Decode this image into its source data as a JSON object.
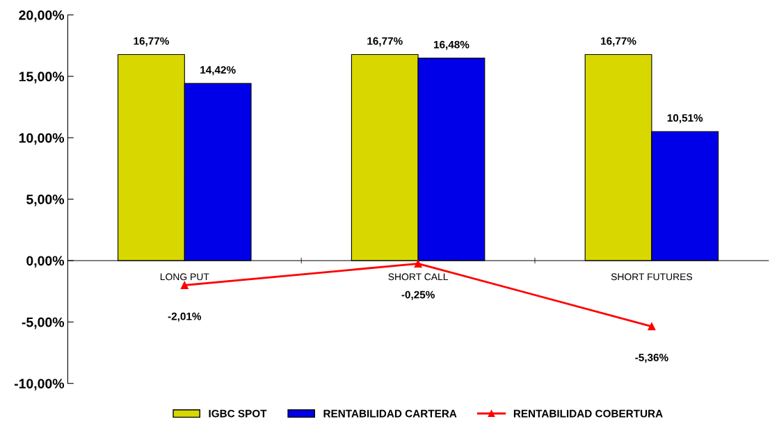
{
  "chart_data": {
    "type": "bar",
    "categories": [
      "LONG PUT",
      "SHORT CALL",
      "SHORT FUTURES"
    ],
    "series": [
      {
        "name": "IGBC SPOT",
        "color": "#d8d800",
        "values": [
          16.77,
          16.77,
          16.77
        ],
        "value_labels": [
          "16,77%",
          "16,77%",
          "16,77%"
        ]
      },
      {
        "name": "RENTABILIDAD CARTERA",
        "color": "#0000e8",
        "values": [
          14.42,
          16.48,
          10.51
        ],
        "value_labels": [
          "14,42%",
          "16,48%",
          "10,51%"
        ]
      },
      {
        "name": "RENTABILIDAD COBERTURA",
        "type": "line",
        "color": "#ff0000",
        "marker": "triangle",
        "line_style": "solid",
        "values": [
          -2.01,
          -0.25,
          -5.36
        ],
        "value_labels": [
          "-2,01%",
          "-0,25%",
          "-5,36%"
        ]
      }
    ],
    "ylim": [
      -10,
      20
    ],
    "yticks": [
      {
        "value": -10,
        "label": "-10,00%"
      },
      {
        "value": -5,
        "label": "-5,00%"
      },
      {
        "value": 0,
        "label": "0,00%"
      },
      {
        "value": 5,
        "label": "5,00%"
      },
      {
        "value": 10,
        "label": "10,00%"
      },
      {
        "value": 15,
        "label": "15,00%"
      },
      {
        "value": 20,
        "label": "20,00%"
      }
    ],
    "grid": false,
    "legend": "bottom"
  }
}
